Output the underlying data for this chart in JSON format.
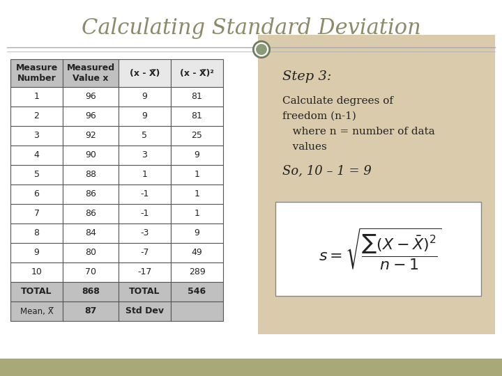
{
  "title": "Calculating Standard Deviation",
  "title_color": "#8B8B6B",
  "bg_color": "#FFFFFF",
  "right_bg_color": "#D9CBAB",
  "bottom_bar_color": "#A8A878",
  "table_headers": [
    "Measure\nNumber",
    "Measured\nValue x",
    "(x - X̅)",
    "(x - X̅)²"
  ],
  "table_rows": [
    [
      "1",
      "96",
      "9",
      "81"
    ],
    [
      "2",
      "96",
      "9",
      "81"
    ],
    [
      "3",
      "92",
      "5",
      "25"
    ],
    [
      "4",
      "90",
      "3",
      "9"
    ],
    [
      "5",
      "88",
      "1",
      "1"
    ],
    [
      "6",
      "86",
      "-1",
      "1"
    ],
    [
      "7",
      "86",
      "-1",
      "1"
    ],
    [
      "8",
      "84",
      "-3",
      "9"
    ],
    [
      "9",
      "80",
      "-7",
      "49"
    ],
    [
      "10",
      "70",
      "-17",
      "289"
    ],
    [
      "TOTAL",
      "868",
      "TOTAL",
      "546"
    ],
    [
      "Mean, X̅",
      "87",
      "Std Dev",
      ""
    ]
  ],
  "step_text": "Step 3:",
  "desc_text": "Calculate degrees of\nfreedom (n-1)\n   where n = number of data\n   values",
  "result_text": "So, 10 – 1 = 9",
  "header_bg": "#C0C0C0",
  "row_alt_color": "#F5F5F5",
  "row_color": "#FFFFFF",
  "border_color": "#555555"
}
